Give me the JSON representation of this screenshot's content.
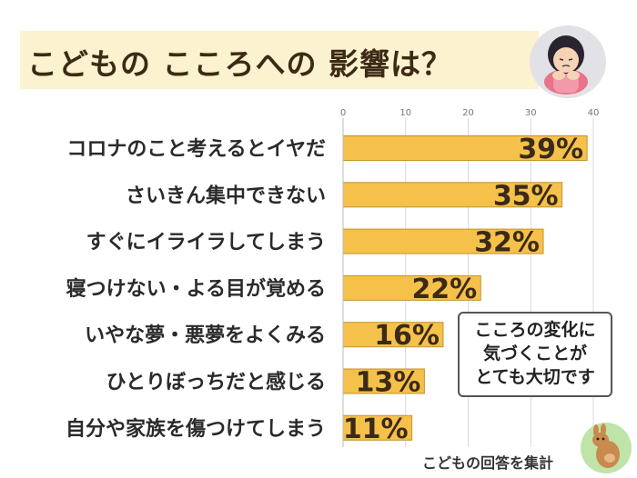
{
  "title": "こどもの こころへの 影響は？",
  "callout": {
    "lines": [
      "こころの変化に",
      "気づくことが",
      "とても大切です"
    ]
  },
  "footer_note": "こどもの回答を集計",
  "colors": {
    "bar_fill": "#f5c14a",
    "bar_stroke": "#c4932a",
    "title_band": "#fbf2cf",
    "title_text": "#3c2a14",
    "value_text": "#3a2a18",
    "label_text": "#2a2a2a"
  },
  "chart_data": {
    "type": "bar",
    "orientation": "horizontal",
    "title": "こどもの こころへの 影響は？",
    "categories": [
      "コロナのこと考えるとイヤだ",
      "さいきん集中できない",
      "すぐにイライラしてしまう",
      "寝つけない・よる目が覚める",
      "いやな夢・悪夢をよくみる",
      "ひとりぼっちだと感じる",
      "自分や家族を傷つけてしまう"
    ],
    "values": [
      39,
      35,
      32,
      22,
      16,
      13,
      11
    ],
    "value_labels": [
      "39%",
      "35%",
      "32%",
      "22%",
      "16%",
      "13%",
      "11%"
    ],
    "xlim": [
      0,
      40
    ],
    "ticks": [
      0,
      10,
      20,
      30,
      40
    ],
    "tick_labels": [
      "0",
      "10",
      "20",
      "30",
      "40"
    ],
    "xlabel": "",
    "ylabel": "",
    "grid": true,
    "legend": "none"
  }
}
